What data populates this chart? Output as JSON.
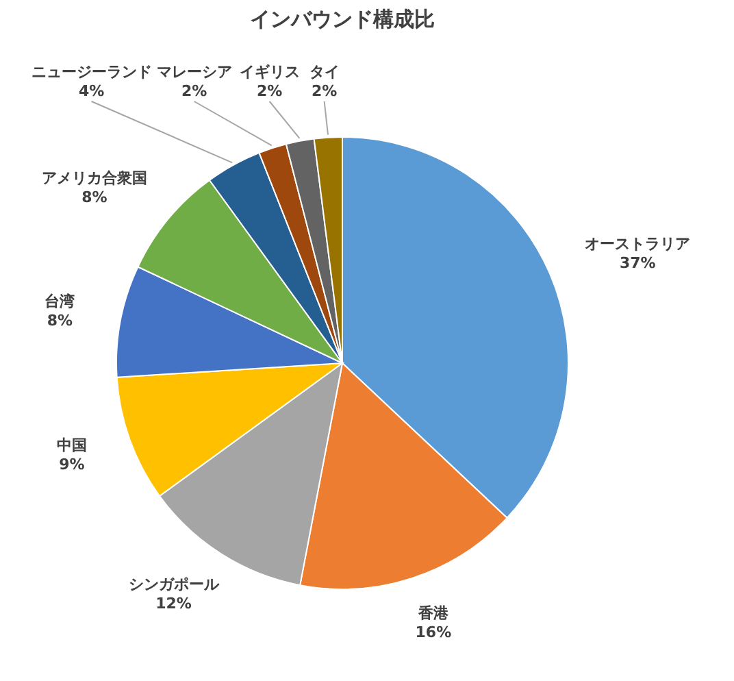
{
  "chart_data": {
    "type": "pie",
    "title": "インバウンド構成比",
    "categories": [
      "オーストラリア",
      "香港",
      "シンガポール",
      "中国",
      "台湾",
      "アメリカ合衆国",
      "ニュージーランド",
      "マレーシア",
      "イギリス",
      "タイ"
    ],
    "values": [
      37,
      16,
      12,
      9,
      8,
      8,
      4,
      2,
      2,
      2
    ],
    "colors": [
      "#5b9bd5",
      "#ed7d31",
      "#a5a5a5",
      "#ffc000",
      "#4472c4",
      "#70ad47",
      "#255e91",
      "#9e480e",
      "#636363",
      "#997300"
    ],
    "value_labels": [
      "37%",
      "16%",
      "12%",
      "9%",
      "8%",
      "8%",
      "4%",
      "2%",
      "2%",
      "2%"
    ]
  }
}
